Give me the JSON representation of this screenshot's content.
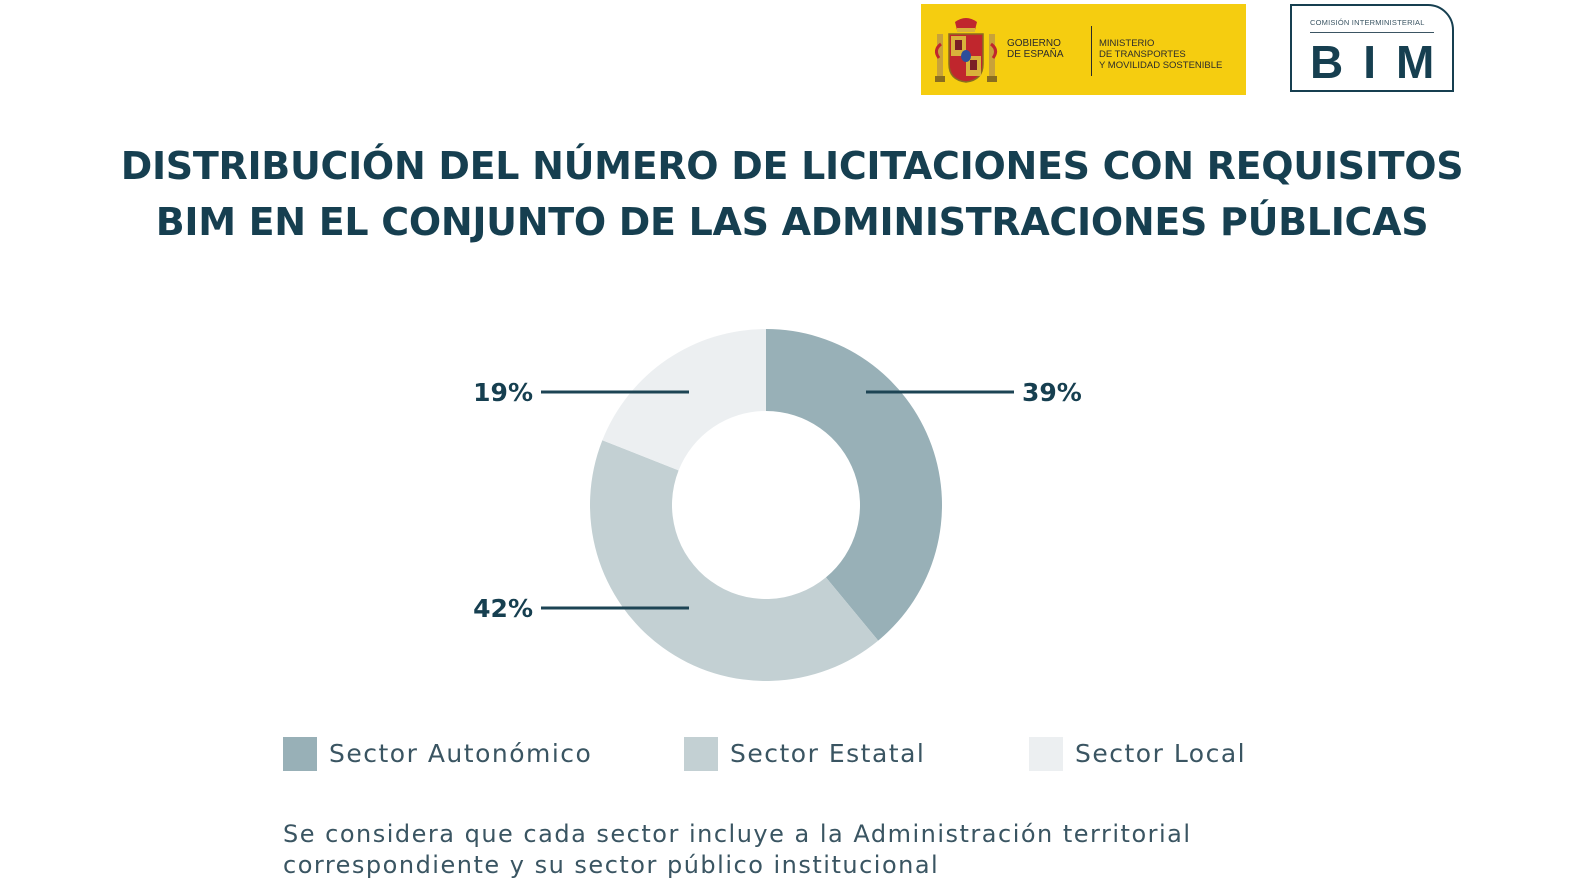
{
  "header": {
    "government": {
      "name_lines": [
        "Gobierno",
        "de España"
      ],
      "ministry_lines": [
        "Ministerio",
        "de Transportes",
        "y Movilidad Sostenible"
      ],
      "background": "#f5cd10"
    },
    "commission": {
      "caption": "Comisión Interministerial",
      "acronym": "BIM"
    }
  },
  "title_lines": [
    "DISTRIBUCIÓN DEL NÚMERO DE LICITACIONES CON REQUISITOS",
    "BIM EN EL CONJUNTO DE LAS ADMINISTRACIONES PÚBLICAS"
  ],
  "chart_data": {
    "type": "pie",
    "donut": true,
    "title": "DISTRIBUCIÓN DEL NÚMERO DE LICITACIONES CON REQUISITOS BIM EN EL CONJUNTO DE LAS ADMINISTRACIONES PÚBLICAS",
    "categories": [
      "Sector Autonómico",
      "Sector Estatal",
      "Sector Local"
    ],
    "values": [
      39,
      42,
      19
    ],
    "labels": [
      "39%",
      "42%",
      "19%"
    ],
    "unit": "%",
    "colors": [
      "#98b0b7",
      "#c3d0d3",
      "#eceff1"
    ],
    "legend_position": "bottom"
  },
  "footnote_lines": [
    "Se considera que cada sector incluye a la Administración territorial",
    "correspondiente y su sector público institucional"
  ]
}
